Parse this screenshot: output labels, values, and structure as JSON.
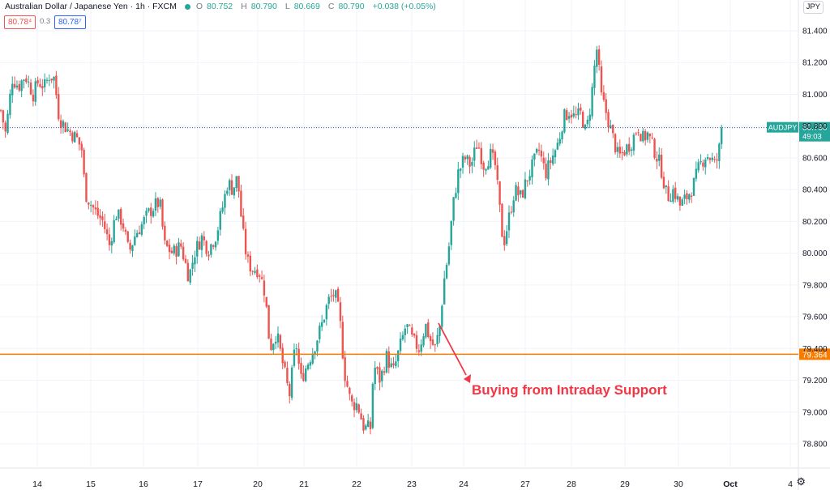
{
  "header": {
    "title": "Australian Dollar / Japanese Yen · 1h · FXCM",
    "ohlc": [
      {
        "label": "O",
        "value": "80.752"
      },
      {
        "label": "H",
        "value": "80.790"
      },
      {
        "label": "L",
        "value": "80.669"
      },
      {
        "label": "C",
        "value": "80.790"
      }
    ],
    "change": "+0.038 (+0.05%)",
    "sell_price": "80.78⁴",
    "spread": "0.3",
    "buy_price": "80.78⁷"
  },
  "currency_button": "JPY",
  "annotation": "Buying from Intraday Support",
  "colors": {
    "up": "#26a69a",
    "down": "#ef5350",
    "support": "#f57c00",
    "annotation": "#f23645",
    "grid": "#f0f3fa",
    "price_line": "#3f51b5"
  },
  "chart_data": {
    "type": "candlestick",
    "symbol": "AUDJPY",
    "interval": "1h",
    "ylim": [
      78.75,
      81.5
    ],
    "y_ticks": [
      "81.400",
      "81.200",
      "81.000",
      "80.800",
      "80.600",
      "80.400",
      "80.200",
      "80.000",
      "79.800",
      "79.600",
      "79.400",
      "79.200",
      "79.000",
      "78.800"
    ],
    "x_ticks": [
      "14",
      "15",
      "16",
      "17",
      "20",
      "21",
      "22",
      "23",
      "24",
      "27",
      "28",
      "29",
      "30",
      "Oct",
      "4"
    ],
    "last_price": {
      "symbol_label": "AUDJPY",
      "value": "80.790",
      "countdown": "49:03",
      "price": 80.79
    },
    "support_level": {
      "label": "79.364",
      "price": 79.364
    },
    "path": [
      [
        0,
        80.9
      ],
      [
        6,
        80.75
      ],
      [
        14,
        81.1
      ],
      [
        22,
        81.05
      ],
      [
        30,
        81.12
      ],
      [
        40,
        81.0
      ],
      [
        46,
        81.08
      ],
      [
        54,
        81.05
      ],
      [
        60,
        81.12
      ],
      [
        66,
        81.1
      ],
      [
        72,
        80.85
      ],
      [
        82,
        80.78
      ],
      [
        94,
        80.72
      ],
      [
        100,
        80.65
      ],
      [
        104,
        80.38
      ],
      [
        110,
        80.32
      ],
      [
        118,
        80.25
      ],
      [
        126,
        80.2
      ],
      [
        134,
        80.05
      ],
      [
        142,
        80.25
      ],
      [
        150,
        80.2
      ],
      [
        158,
        80.0
      ],
      [
        166,
        80.12
      ],
      [
        174,
        80.18
      ],
      [
        182,
        80.25
      ],
      [
        190,
        80.3
      ],
      [
        196,
        80.32
      ],
      [
        202,
        80.05
      ],
      [
        212,
        80.0
      ],
      [
        222,
        80.05
      ],
      [
        232,
        79.85
      ],
      [
        240,
        80.02
      ],
      [
        248,
        80.1
      ],
      [
        256,
        80.02
      ],
      [
        266,
        80.12
      ],
      [
        274,
        80.3
      ],
      [
        280,
        80.45
      ],
      [
        286,
        80.4
      ],
      [
        292,
        80.48
      ],
      [
        298,
        80.15
      ],
      [
        304,
        79.95
      ],
      [
        310,
        79.9
      ],
      [
        318,
        79.9
      ],
      [
        326,
        79.75
      ],
      [
        332,
        79.4
      ],
      [
        340,
        79.5
      ],
      [
        348,
        79.3
      ],
      [
        356,
        79.1
      ],
      [
        364,
        79.45
      ],
      [
        370,
        79.2
      ],
      [
        378,
        79.3
      ],
      [
        386,
        79.4
      ],
      [
        396,
        79.55
      ],
      [
        404,
        79.7
      ],
      [
        412,
        79.75
      ],
      [
        418,
        79.6
      ],
      [
        424,
        79.25
      ],
      [
        432,
        79.05
      ],
      [
        440,
        79.05
      ],
      [
        448,
        78.9
      ],
      [
        456,
        78.9
      ],
      [
        460,
        79.3
      ],
      [
        468,
        79.2
      ],
      [
        476,
        79.35
      ],
      [
        484,
        79.25
      ],
      [
        492,
        79.4
      ],
      [
        500,
        79.55
      ],
      [
        508,
        79.45
      ],
      [
        516,
        79.4
      ],
      [
        524,
        79.55
      ],
      [
        530,
        79.45
      ],
      [
        536,
        79.4
      ],
      [
        542,
        79.55
      ],
      [
        546,
        79.8
      ],
      [
        552,
        80.0
      ],
      [
        558,
        80.3
      ],
      [
        564,
        80.5
      ],
      [
        572,
        80.6
      ],
      [
        580,
        80.55
      ],
      [
        588,
        80.7
      ],
      [
        596,
        80.55
      ],
      [
        604,
        80.62
      ],
      [
        610,
        80.55
      ],
      [
        614,
        80.35
      ],
      [
        620,
        80.05
      ],
      [
        626,
        80.2
      ],
      [
        634,
        80.4
      ],
      [
        642,
        80.35
      ],
      [
        648,
        80.45
      ],
      [
        656,
        80.55
      ],
      [
        664,
        80.65
      ],
      [
        672,
        80.5
      ],
      [
        680,
        80.6
      ],
      [
        688,
        80.7
      ],
      [
        694,
        80.85
      ],
      [
        702,
        80.9
      ],
      [
        708,
        80.85
      ],
      [
        716,
        80.88
      ],
      [
        722,
        80.75
      ],
      [
        728,
        80.95
      ],
      [
        734,
        81.25
      ],
      [
        736,
        81.3
      ],
      [
        740,
        81.0
      ],
      [
        746,
        80.9
      ],
      [
        754,
        80.75
      ],
      [
        762,
        80.6
      ],
      [
        770,
        80.65
      ],
      [
        778,
        80.7
      ],
      [
        786,
        80.8
      ],
      [
        792,
        80.72
      ],
      [
        798,
        80.75
      ],
      [
        806,
        80.65
      ],
      [
        814,
        80.55
      ],
      [
        822,
        80.35
      ],
      [
        830,
        80.4
      ],
      [
        838,
        80.3
      ],
      [
        846,
        80.35
      ],
      [
        854,
        80.42
      ],
      [
        862,
        80.55
      ],
      [
        870,
        80.62
      ],
      [
        876,
        80.6
      ],
      [
        882,
        80.55
      ],
      [
        888,
        80.7
      ],
      [
        891,
        80.79
      ]
    ]
  }
}
